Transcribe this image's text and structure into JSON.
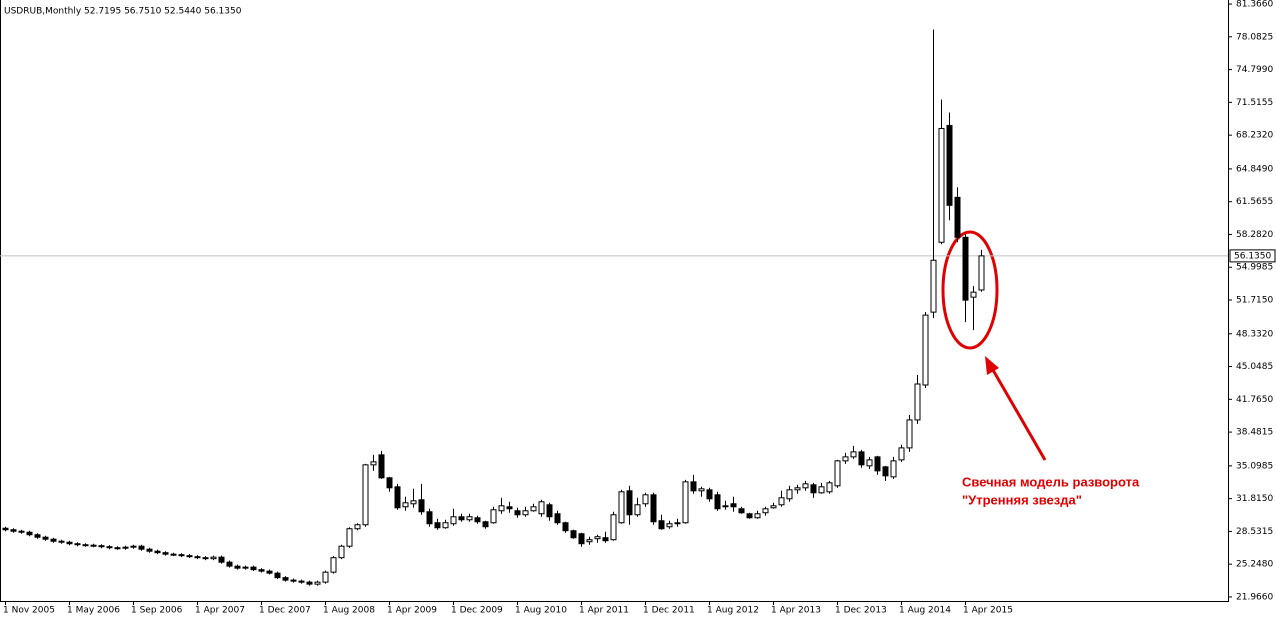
{
  "chart_data": {
    "type": "candlestick",
    "subtitle": "USDRUB,Monthly  52.7195 56.7510 52.5440 56.1350",
    "up_color": "#ffffff",
    "down_color": "#000000",
    "outline_color": "#000000",
    "categories": [
      "1 Nov 2005",
      null,
      null,
      null,
      null,
      null,
      null,
      null,
      "1 May 2006",
      null,
      null,
      null,
      null,
      null,
      null,
      null,
      "1 Sep 2006",
      null,
      null,
      null,
      null,
      null,
      null,
      null,
      "1 Apr 2007",
      null,
      null,
      null,
      null,
      null,
      null,
      null,
      "1 Dec 2007",
      null,
      null,
      null,
      null,
      null,
      null,
      null,
      "1 Aug 2008",
      null,
      null,
      null,
      null,
      null,
      null,
      null,
      "1 Apr 2009",
      null,
      null,
      null,
      null,
      null,
      null,
      null,
      "1 Dec 2009",
      null,
      null,
      null,
      null,
      null,
      null,
      null,
      "1 Aug 2010",
      null,
      null,
      null,
      null,
      null,
      null,
      null,
      "1 Apr 2011",
      null,
      null,
      null,
      null,
      null,
      null,
      null,
      "1 Dec 2011",
      null,
      null,
      null,
      null,
      null,
      null,
      null,
      "1 Aug 2012",
      null,
      null,
      null,
      null,
      null,
      null,
      null,
      "1 Apr 2013",
      null,
      null,
      null,
      null,
      null,
      null,
      null,
      "1 Dec 2013",
      null,
      null,
      null,
      null,
      null,
      null,
      null,
      "1 Aug 2014",
      null,
      null,
      null,
      null,
      null,
      null,
      null,
      "1 Apr 2015",
      null,
      null
    ],
    "series": {
      "open": [
        28.85,
        28.7,
        28.55,
        28.45,
        28.2,
        27.95,
        27.75,
        27.55,
        27.45,
        27.3,
        27.2,
        27.15,
        27.1,
        27.0,
        26.9,
        26.85,
        26.95,
        27.05,
        26.75,
        26.55,
        26.4,
        26.25,
        26.2,
        26.1,
        26.0,
        25.9,
        25.8,
        25.95,
        25.45,
        25.05,
        24.85,
        24.95,
        24.7,
        24.55,
        24.35,
        23.9,
        23.65,
        23.55,
        23.45,
        23.25,
        23.45,
        24.45,
        25.9,
        27.05,
        28.8,
        29.2,
        35.2,
        36.2,
        33.9,
        33.0,
        31.0,
        31.3,
        31.7,
        30.5,
        29.4,
        28.9,
        29.3,
        30.0,
        29.7,
        29.9,
        29.5,
        29.4,
        30.6,
        31.0,
        30.6,
        30.2,
        30.6,
        30.3,
        31.2,
        30.3,
        29.4,
        28.6,
        28.3,
        27.5,
        27.8,
        27.9,
        27.7,
        29.4,
        32.6,
        30.2,
        31.3,
        32.2,
        29.6,
        29.0,
        29.3,
        29.4,
        33.5,
        32.6,
        32.7,
        32.2,
        31.0,
        31.3,
        30.8,
        30.3,
        29.9,
        30.4,
        30.9,
        31.2,
        31.8,
        32.7,
        32.9,
        33.2,
        32.4,
        32.5,
        33.1,
        35.6,
        36.0,
        36.5,
        35.1,
        36.0,
        35.0,
        34.0,
        35.7,
        36.9,
        39.7,
        43.2,
        50.5,
        57.5,
        69.2,
        62.0,
        58.0,
        52.0,
        52.7195
      ],
      "high": [
        29.0,
        28.85,
        28.7,
        28.6,
        28.35,
        28.1,
        27.9,
        27.7,
        27.6,
        27.45,
        27.35,
        27.3,
        27.25,
        27.15,
        27.05,
        27.1,
        27.2,
        27.2,
        26.9,
        26.7,
        26.55,
        26.4,
        26.35,
        26.25,
        26.15,
        26.05,
        26.1,
        26.1,
        25.6,
        25.2,
        25.1,
        25.1,
        24.85,
        24.7,
        24.5,
        24.05,
        23.8,
        23.7,
        23.6,
        23.6,
        24.6,
        26.05,
        27.2,
        28.95,
        29.35,
        35.3,
        36.2,
        36.6,
        34.0,
        33.3,
        32.0,
        32.8,
        33.3,
        30.8,
        29.8,
        29.7,
        30.8,
        30.3,
        30.3,
        30.1,
        29.6,
        31.0,
        31.9,
        31.5,
        30.9,
        31.0,
        31.3,
        31.7,
        31.4,
        30.6,
        29.5,
        28.7,
        28.4,
        28.0,
        28.2,
        28.5,
        30.5,
        32.7,
        33.1,
        31.9,
        32.4,
        32.4,
        30.2,
        29.6,
        29.8,
        33.7,
        34.2,
        33.0,
        32.9,
        32.5,
        31.6,
        32.0,
        31.0,
        30.4,
        30.6,
        31.0,
        31.4,
        32.6,
        33.1,
        33.2,
        33.6,
        33.4,
        33.4,
        33.6,
        35.7,
        36.4,
        37.1,
        36.7,
        36.0,
        36.1,
        35.1,
        36.0,
        37.2,
        40.2,
        44.2,
        50.5,
        78.8,
        71.8,
        70.5,
        63.0,
        58.3,
        53.1,
        56.751
      ],
      "low": [
        28.55,
        28.4,
        28.3,
        28.05,
        27.8,
        27.6,
        27.4,
        27.3,
        27.15,
        27.05,
        27.0,
        26.95,
        26.85,
        26.75,
        26.7,
        26.7,
        26.8,
        26.6,
        26.4,
        26.25,
        26.1,
        26.05,
        25.95,
        25.85,
        25.75,
        25.65,
        25.65,
        25.3,
        24.9,
        24.7,
        24.7,
        24.55,
        24.4,
        24.2,
        23.75,
        23.5,
        23.4,
        23.3,
        23.1,
        23.1,
        23.3,
        24.3,
        25.75,
        26.9,
        28.65,
        29.0,
        34.6,
        33.8,
        32.5,
        30.7,
        30.6,
        30.9,
        30.2,
        29.0,
        28.7,
        28.8,
        29.1,
        29.5,
        29.5,
        29.3,
        28.8,
        29.3,
        30.3,
        30.4,
        29.9,
        30.0,
        30.5,
        30.0,
        29.6,
        29.2,
        28.4,
        27.8,
        27.0,
        27.2,
        27.4,
        27.4,
        27.6,
        29.3,
        29.2,
        30.0,
        31.0,
        29.2,
        28.7,
        28.8,
        29.0,
        29.3,
        32.3,
        32.0,
        31.5,
        30.6,
        30.7,
        30.5,
        30.3,
        29.8,
        29.8,
        30.1,
        30.8,
        31.0,
        31.5,
        32.3,
        32.6,
        31.9,
        32.3,
        32.3,
        32.9,
        35.3,
        35.8,
        34.9,
        34.8,
        34.2,
        33.6,
        33.8,
        35.5,
        36.5,
        39.3,
        42.9,
        49.9,
        57.3,
        59.7,
        57.5,
        49.5,
        48.7,
        52.544
      ],
      "close": [
        28.7,
        28.55,
        28.45,
        28.2,
        27.95,
        27.75,
        27.55,
        27.45,
        27.3,
        27.2,
        27.15,
        27.1,
        27.0,
        26.9,
        26.85,
        26.95,
        27.05,
        26.75,
        26.55,
        26.4,
        26.25,
        26.2,
        26.1,
        26.0,
        25.9,
        25.8,
        25.95,
        25.45,
        25.05,
        24.85,
        24.95,
        24.7,
        24.55,
        24.35,
        23.9,
        23.65,
        23.55,
        23.45,
        23.25,
        23.45,
        24.45,
        25.9,
        27.05,
        28.8,
        29.2,
        35.2,
        35.5,
        33.9,
        32.9,
        30.9,
        31.4,
        31.6,
        30.5,
        29.3,
        28.9,
        29.4,
        30.0,
        29.7,
        30.0,
        29.5,
        29.0,
        30.7,
        31.1,
        30.8,
        30.2,
        30.6,
        31.0,
        31.5,
        30.0,
        29.4,
        28.6,
        27.9,
        27.3,
        27.7,
        28.0,
        27.6,
        30.2,
        32.5,
        30.2,
        31.2,
        32.2,
        29.5,
        28.8,
        29.3,
        29.4,
        33.5,
        32.6,
        32.8,
        31.8,
        30.8,
        31.1,
        31.0,
        30.4,
        29.9,
        30.3,
        30.8,
        31.1,
        31.9,
        32.7,
        32.9,
        33.3,
        32.4,
        33.0,
        33.4,
        35.6,
        36.0,
        36.5,
        35.2,
        35.7,
        34.6,
        34.1,
        35.6,
        36.9,
        39.7,
        43.3,
        50.2,
        55.7,
        68.9,
        61.2,
        58.0,
        51.7,
        52.5,
        56.135
      ]
    },
    "ylim": [
      21.56,
      81.77
    ],
    "yticks": [
      {
        "value": 81.366,
        "label": "81.3660"
      },
      {
        "value": 78.0825,
        "label": "78.0825"
      },
      {
        "value": 74.799,
        "label": "74.7990"
      },
      {
        "value": 71.5155,
        "label": "71.5155"
      },
      {
        "value": 68.232,
        "label": "68.2320"
      },
      {
        "value": 64.849,
        "label": "64.8490"
      },
      {
        "value": 61.5655,
        "label": "61.5655"
      },
      {
        "value": 58.282,
        "label": "58.2820"
      },
      {
        "value": 54.9985,
        "label": "54.9985"
      },
      {
        "value": 51.715,
        "label": "51.7150"
      },
      {
        "value": 48.332,
        "label": "48.3320"
      },
      {
        "value": 45.0485,
        "label": "45.0485"
      },
      {
        "value": 41.765,
        "label": "41.7650"
      },
      {
        "value": 38.4815,
        "label": "38.4815"
      },
      {
        "value": 35.0985,
        "label": "35.0985"
      },
      {
        "value": 31.815,
        "label": "31.8150"
      },
      {
        "value": 28.5315,
        "label": "28.5315"
      },
      {
        "value": 25.248,
        "label": "25.2480"
      },
      {
        "value": 21.966,
        "label": "21.9660"
      }
    ],
    "price_line": {
      "value": 56.135,
      "label": "56.1350"
    },
    "annotation": [
      "Свечная модель разворота",
      "\"Утренняя звезда\""
    ],
    "annotation_color": "#e00000"
  }
}
